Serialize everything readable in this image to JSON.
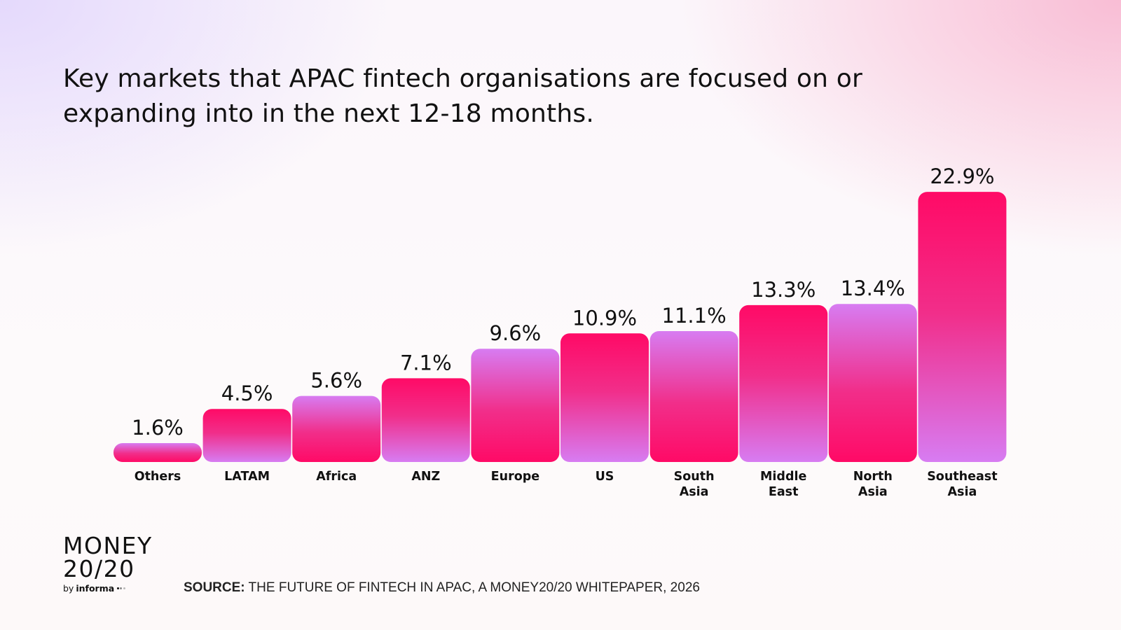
{
  "title": "Key markets that APAC fintech organisations are focused on or expanding into in the next 12-18 months.",
  "chart_data": {
    "type": "bar",
    "title": "Key markets that APAC fintech organisations are focused on or expanding into in the next 12-18 months.",
    "categories": [
      "Others",
      "LATAM",
      "Africa",
      "ANZ",
      "Europe",
      "US",
      "South Asia",
      "Middle East",
      "North Asia",
      "Southeast Asia"
    ],
    "category_label_lines": [
      [
        "Others"
      ],
      [
        "LATAM"
      ],
      [
        "Africa"
      ],
      [
        "ANZ"
      ],
      [
        "Europe"
      ],
      [
        "US"
      ],
      [
        "South",
        "Asia"
      ],
      [
        "Middle",
        "East"
      ],
      [
        "North",
        "Asia"
      ],
      [
        "Southeast",
        "Asia"
      ]
    ],
    "values": [
      1.6,
      4.5,
      5.6,
      7.1,
      9.6,
      10.9,
      11.1,
      13.3,
      13.4,
      22.9
    ],
    "value_labels": [
      "1.6%",
      "4.5%",
      "5.6%",
      "7.1%",
      "9.6%",
      "10.9%",
      "11.1%",
      "13.3%",
      "13.4%",
      "22.9%"
    ],
    "unit": "%",
    "xlabel": "",
    "ylabel": "",
    "grid": false,
    "legend": "none",
    "colors": {
      "pink": "#ff0a66",
      "violet": "#d77cf2"
    }
  },
  "logo": {
    "line1": "MONEY",
    "line2": "20/20",
    "by": "by",
    "informa": "informa",
    "dot_colors": [
      "#111111",
      "#888888",
      "#bbbbbb"
    ]
  },
  "source": {
    "label": "SOURCE:",
    "text": " THE FUTURE OF FINTECH IN APAC, A MONEY20/20 WHITEPAPER, 2026"
  }
}
